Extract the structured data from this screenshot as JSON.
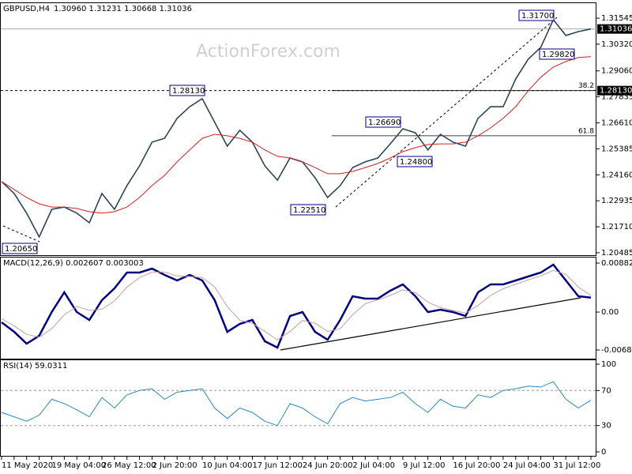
{
  "chart_data": [
    {
      "type": "line",
      "title": "GBPUSD,H4",
      "subtitle": "1.30960 1.31231 1.30668 1.31036",
      "watermark": "ActionForex.com",
      "ylim": [
        1.2037,
        1.3229
      ],
      "yticks": [
        1.31545,
        {
          "value": 1.3032,
          "label": "1.30320"
        },
        {
          "value": 1.2906,
          "label": "1.29060"
        },
        1.27835,
        {
          "value": 1.2661,
          "label": "1.26610"
        },
        1.25385,
        {
          "value": 1.2416,
          "label": "1.24160"
        },
        1.22935,
        {
          "value": 1.2171,
          "label": "1.21710"
        },
        1.20485
      ],
      "price_line": 1.31036,
      "level": {
        "value": 1.2813,
        "label": "1.28130"
      },
      "fib": [
        {
          "ratio": 38.2,
          "price": 1.2813
        },
        {
          "ratio": 61.8,
          "price": 1.26
        }
      ],
      "annotations": [
        "1.31700",
        "1.29820",
        "1.28130",
        "1.26690",
        "1.24800",
        "1.22510",
        "1.20650"
      ],
      "series": [
        {
          "color": "#2c4657",
          "values": [
            1.2384,
            1.2328,
            1.2235,
            1.2123,
            1.2253,
            1.2264,
            1.2235,
            1.219,
            1.2328,
            1.2253,
            1.2365,
            1.2458,
            1.257,
            1.2588,
            1.2682,
            1.2737,
            1.2775,
            1.2663,
            1.2551,
            1.2626,
            1.257,
            1.2458,
            1.2391,
            1.2495,
            1.2477,
            1.2402,
            1.2309,
            1.2365,
            1.245,
            1.2477,
            1.2495,
            1.2562,
            1.2633,
            1.2614,
            1.2533,
            1.2607,
            1.257,
            1.2551,
            1.2682,
            1.2737,
            1.2737,
            1.2868,
            1.2961,
            1.3017,
            1.3147,
            1.3073,
            1.3091,
            1.31036
          ]
        },
        {
          "color": "#d42020",
          "values": [
            1.2384,
            1.2347,
            1.2309,
            1.2279,
            1.2264,
            1.2264,
            1.2257,
            1.2242,
            1.2235,
            1.2242,
            1.2264,
            1.2309,
            1.2365,
            1.2413,
            1.2477,
            1.2533,
            1.2588,
            1.2607,
            1.26,
            1.2588,
            1.257,
            1.2533,
            1.2503,
            1.2495,
            1.2477,
            1.245,
            1.2421,
            1.2421,
            1.2432,
            1.245,
            1.2469,
            1.2495,
            1.2525,
            1.2544,
            1.2559,
            1.2562,
            1.2562,
            1.257,
            1.26,
            1.2637,
            1.2682,
            1.2737,
            1.2812,
            1.2876,
            1.2924,
            1.295,
            1.2969,
            1.2973
          ]
        }
      ]
    },
    {
      "type": "line",
      "title": "MACD(12,26,9) 0.002607 0.003003",
      "ylim": [
        -0.00853,
        0.00996
      ],
      "yticks": [
        0.008824,
        {
          "value": 0,
          "label": "0.00"
        },
        -0.006825
      ],
      "series": [
        {
          "color": "#000080",
          "values": [
            -0.00185,
            -0.00355,
            -0.00569,
            -0.00427,
            0,
            0.00356,
            0,
            -0.00142,
            0.00214,
            0.00427,
            0.00712,
            0.00712,
            0.00783,
            0.00669,
            0.00569,
            0.00669,
            0.00569,
            0.00214,
            -0.00356,
            -0.00213,
            -0.00142,
            -0.00526,
            -0.0064,
            -0.00071,
            0,
            -0.00356,
            -0.00498,
            -0.00142,
            0.00285,
            0.00242,
            0.00242,
            0.00384,
            0.00498,
            0.00285,
            0,
            0.00043,
            0,
            -0.00071,
            0.00356,
            0.00498,
            0.00498,
            0.00569,
            0.0064,
            0.00712,
            0.00854,
            0.00569,
            0.00285,
            0.002607
          ]
        },
        {
          "color": "#c8a0a0",
          "values": [
            -0.0012,
            -0.0025,
            -0.004,
            -0.0045,
            -0.003,
            -0.0005,
            0.001,
            0.0003,
            0.0005,
            0.002,
            0.0045,
            0.0062,
            0.0072,
            0.0072,
            0.0065,
            0.0064,
            0.0062,
            0.0045,
            0.001,
            -0.0015,
            -0.002,
            -0.0035,
            -0.005,
            -0.0035,
            -0.0015,
            -0.002,
            -0.0035,
            -0.003,
            -0.0005,
            0.0015,
            0.0022,
            0.003,
            0.004,
            0.0035,
            0.0018,
            0.0008,
            0.0003,
            -0.0002,
            0.0012,
            0.003,
            0.0042,
            0.005,
            0.0058,
            0.0065,
            0.0075,
            0.0068,
            0.0045,
            0.003003
          ]
        }
      ]
    },
    {
      "type": "line",
      "title": "RSI(14) 59.0311",
      "ylim": [
        -5.4,
        105.4
      ],
      "yticks": [
        100,
        70,
        30,
        0
      ],
      "levels": [
        70,
        30
      ],
      "categories": [
        "11 May 2020",
        null,
        null,
        null,
        "19 May 04:00",
        null,
        null,
        null,
        "26 May 12:00",
        null,
        null,
        null,
        "2 Jun 20:00",
        null,
        null,
        null,
        "10 Jun 04:00",
        null,
        null,
        null,
        "17 Jun 12:00",
        null,
        null,
        null,
        "24 Jun 20:00",
        null,
        null,
        null,
        "2 Jul 04:00",
        null,
        null,
        null,
        "9 Jul 12:00",
        null,
        null,
        null,
        "16 Jul 20:00",
        null,
        null,
        null,
        "24 Jul 04:00",
        null,
        null,
        null,
        "31 Jul 12:00",
        null,
        null,
        null
      ],
      "series": [
        {
          "color": "#2b86c5",
          "values": [
            45,
            40,
            35,
            42,
            60,
            55,
            48,
            40,
            62,
            50,
            65,
            70,
            72,
            60,
            68,
            70,
            72,
            50,
            38,
            50,
            45,
            35,
            30,
            55,
            50,
            40,
            32,
            55,
            62,
            58,
            60,
            62,
            68,
            55,
            45,
            60,
            52,
            50,
            65,
            62,
            70,
            72,
            75,
            74,
            80,
            60,
            50,
            59.0311
          ]
        }
      ]
    }
  ]
}
